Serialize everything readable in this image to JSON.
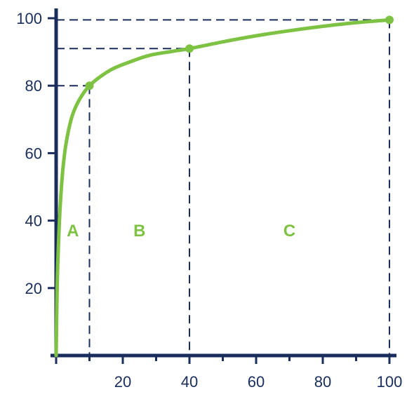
{
  "chart_data": {
    "type": "line",
    "title": "",
    "xlabel": "",
    "ylabel": "",
    "xlim": [
      0,
      100
    ],
    "ylim": [
      0,
      100
    ],
    "x_ticks": [
      20,
      40,
      60,
      80,
      100
    ],
    "y_ticks": [
      20,
      40,
      60,
      80,
      100
    ],
    "series": [
      {
        "color": "#7dc242",
        "x": [
          0,
          0.3,
          0.7,
          1.2,
          2,
          3,
          4.5,
          6,
          8,
          10,
          13,
          17,
          22,
          28,
          35,
          40,
          50,
          60,
          70,
          80,
          90,
          100
        ],
        "y": [
          0,
          20,
          33,
          44,
          55,
          63,
          70,
          74,
          77.5,
          80,
          82.5,
          85,
          87,
          89,
          90.2,
          91,
          93,
          94.8,
          96.3,
          97.6,
          98.7,
          99.5
        ]
      }
    ],
    "highlight_points": [
      {
        "x": 10,
        "y": 80
      },
      {
        "x": 40,
        "y": 91
      },
      {
        "x": 100,
        "y": 99.5
      }
    ],
    "regions": [
      {
        "label": "A",
        "x_from": 0,
        "x_to": 10
      },
      {
        "label": "B",
        "x_from": 10,
        "x_to": 40
      },
      {
        "label": "C",
        "x_from": 40,
        "x_to": 100
      }
    ],
    "region_label_y": 37,
    "grid": false,
    "legend": "none",
    "colors": {
      "axis": "#1a2e5e",
      "curve": "#7dc242"
    }
  }
}
